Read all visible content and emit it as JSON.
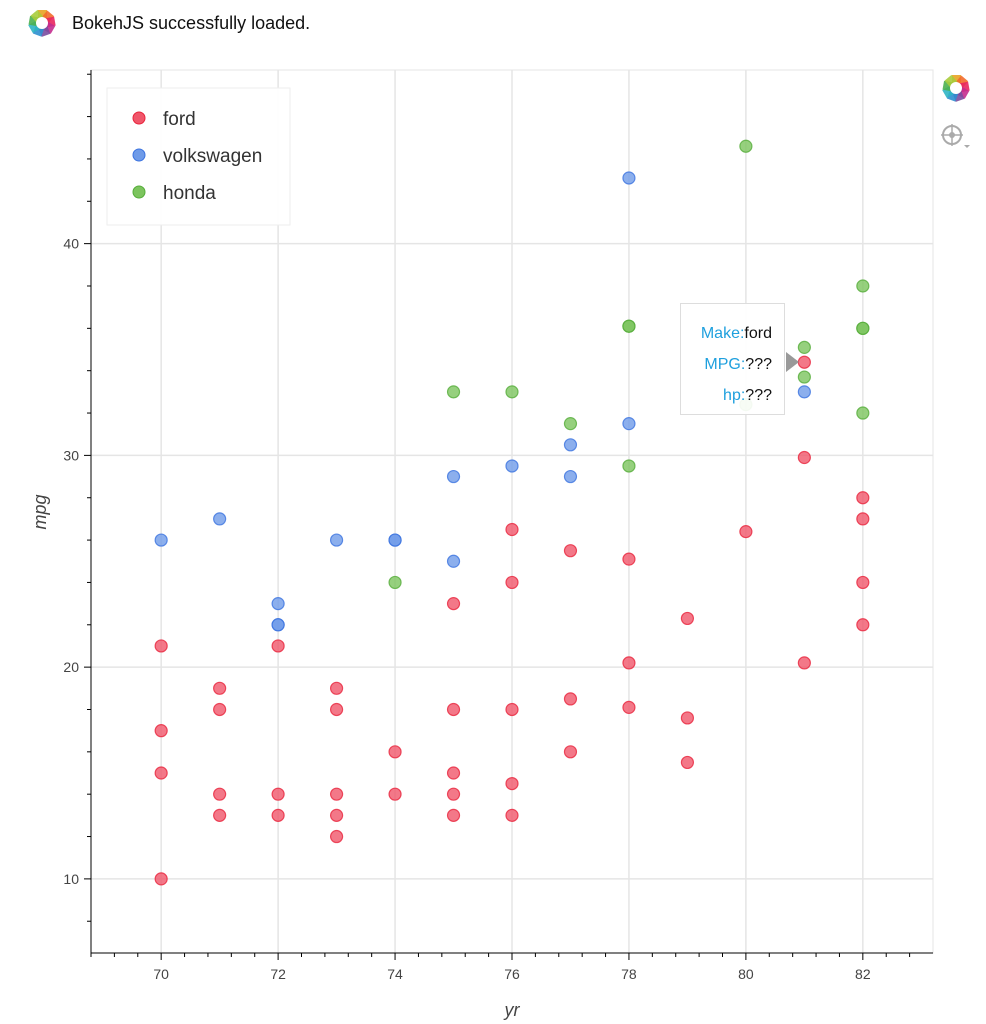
{
  "banner": {
    "text": "BokehJS successfully loaded.",
    "icon": "bokeh-logo-icon"
  },
  "toolbar": {
    "items": [
      "bokeh-logo-icon",
      "crosshair-hover-icon"
    ]
  },
  "tooltip": {
    "rows": [
      {
        "key": "Make:",
        "value": "ford"
      },
      {
        "key": "MPG:",
        "value": "???"
      },
      {
        "key": "hp:",
        "value": "???"
      }
    ]
  },
  "chart_data": {
    "type": "scatter",
    "xlabel": "yr",
    "ylabel": "mpg",
    "xlim": [
      68.8,
      83.2
    ],
    "ylim": [
      6.5,
      48.2
    ],
    "xticks": [
      70,
      72,
      74,
      76,
      78,
      80,
      82
    ],
    "yticks": [
      10,
      20,
      30,
      40
    ],
    "grid": true,
    "legend_position": "top-left",
    "series": [
      {
        "name": "ford",
        "color": "#e8243c",
        "points": [
          [
            70,
            21
          ],
          [
            70,
            17
          ],
          [
            70,
            15
          ],
          [
            70,
            10
          ],
          [
            71,
            19
          ],
          [
            71,
            18
          ],
          [
            71,
            14
          ],
          [
            71,
            13
          ],
          [
            72,
            21
          ],
          [
            72,
            14
          ],
          [
            72,
            13
          ],
          [
            73,
            19
          ],
          [
            73,
            18
          ],
          [
            73,
            14
          ],
          [
            73,
            13
          ],
          [
            73,
            12
          ],
          [
            74,
            16
          ],
          [
            74,
            14
          ],
          [
            75,
            23
          ],
          [
            75,
            18
          ],
          [
            75,
            15
          ],
          [
            75,
            14
          ],
          [
            75,
            13
          ],
          [
            76,
            26.5
          ],
          [
            76,
            24
          ],
          [
            76,
            18
          ],
          [
            76,
            14.5
          ],
          [
            76,
            13
          ],
          [
            77,
            25.5
          ],
          [
            77,
            18.5
          ],
          [
            77,
            16
          ],
          [
            78,
            25.1
          ],
          [
            78,
            20.2
          ],
          [
            78,
            18.1
          ],
          [
            79,
            22.3
          ],
          [
            79,
            17.6
          ],
          [
            79,
            15.5
          ],
          [
            80,
            26.4
          ],
          [
            81,
            34.4
          ],
          [
            81,
            29.9
          ],
          [
            81,
            20.2
          ],
          [
            82,
            28
          ],
          [
            82,
            27
          ],
          [
            82,
            24
          ],
          [
            82,
            22
          ]
        ]
      },
      {
        "name": "volkswagen",
        "color": "#3b73e0",
        "points": [
          [
            70,
            26
          ],
          [
            71,
            27
          ],
          [
            72,
            23
          ],
          [
            72,
            22
          ],
          [
            72,
            22
          ],
          [
            73,
            26
          ],
          [
            74,
            26
          ],
          [
            74,
            26
          ],
          [
            75,
            29
          ],
          [
            75,
            25
          ],
          [
            76,
            29.5
          ],
          [
            77,
            30.5
          ],
          [
            77,
            29
          ],
          [
            78,
            43.1
          ],
          [
            78,
            31.5
          ],
          [
            81,
            33
          ]
        ]
      },
      {
        "name": "honda",
        "color": "#55ad3a",
        "points": [
          [
            74,
            24
          ],
          [
            75,
            33
          ],
          [
            76,
            33
          ],
          [
            77,
            31.5
          ],
          [
            78,
            36.1
          ],
          [
            78,
            36.1
          ],
          [
            78,
            29.5
          ],
          [
            80,
            44.6
          ],
          [
            80,
            32.4
          ],
          [
            81,
            35.1
          ],
          [
            81,
            33.7
          ],
          [
            82,
            38
          ],
          [
            82,
            36
          ],
          [
            82,
            36
          ],
          [
            82,
            32
          ]
        ]
      }
    ]
  }
}
